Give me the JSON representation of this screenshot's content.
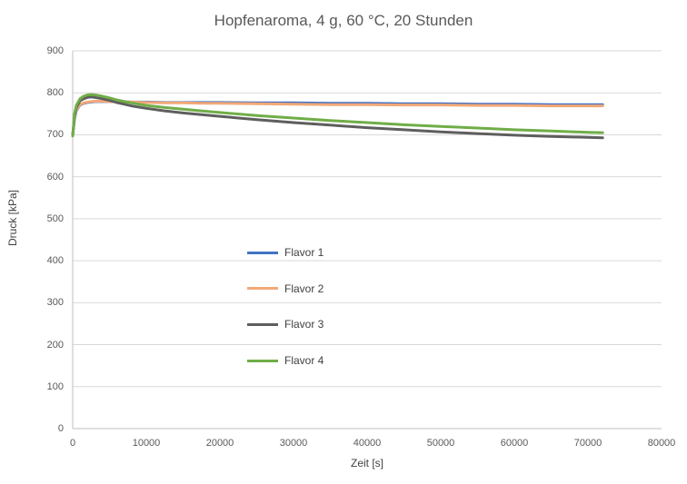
{
  "chart_data": {
    "type": "line",
    "title": "Hopfenaroma, 4 g, 60 °C, 20 Stunden",
    "xlabel": "Zeit [s]",
    "ylabel": "Druck [kPa]",
    "xlim": [
      0,
      80000
    ],
    "ylim": [
      0,
      900
    ],
    "x_ticks": [
      0,
      10000,
      20000,
      30000,
      40000,
      50000,
      60000,
      70000,
      80000
    ],
    "y_ticks": [
      0,
      100,
      200,
      300,
      400,
      500,
      600,
      700,
      800,
      900
    ],
    "grid": "horizontal",
    "legend_position": "inside-center-left",
    "colors": {
      "grid_line": "#D9D9D9",
      "axis_line": "#BFBFBF",
      "title_text": "#595959",
      "tick_text": "#595959",
      "axis_title_text": "#404040"
    },
    "x": [
      0,
      250,
      500,
      1000,
      1500,
      2000,
      2500,
      3000,
      4000,
      5000,
      6000,
      8000,
      10000,
      12500,
      15000,
      17500,
      20000,
      25000,
      30000,
      35000,
      40000,
      45000,
      50000,
      55000,
      60000,
      65000,
      70000,
      72000
    ],
    "series": [
      {
        "name": "Flavor 1",
        "color": "#4472C4",
        "values": [
          700,
          738,
          758,
          771,
          775,
          777,
          778,
          779,
          779,
          779,
          779,
          778,
          778,
          777,
          777,
          777,
          777,
          776,
          776,
          775,
          775,
          774,
          774,
          773,
          773,
          772,
          772,
          772
        ]
      },
      {
        "name": "Flavor 2",
        "color": "#F2A878",
        "values": [
          700,
          740,
          760,
          772,
          776,
          778,
          779,
          780,
          780,
          779,
          779,
          778,
          777,
          776,
          776,
          775,
          775,
          774,
          773,
          772,
          772,
          771,
          771,
          770,
          770,
          769,
          769,
          769
        ]
      },
      {
        "name": "Flavor 3",
        "color": "#5E5E5E",
        "values": [
          698,
          744,
          765,
          781,
          786,
          789,
          790,
          789,
          786,
          782,
          777,
          769,
          763,
          757,
          752,
          748,
          744,
          736,
          729,
          723,
          717,
          712,
          707,
          703,
          699,
          696,
          694,
          693
        ]
      },
      {
        "name": "Flavor 4",
        "color": "#70AD47",
        "values": [
          697,
          750,
          770,
          786,
          792,
          795,
          796,
          795,
          792,
          788,
          783,
          776,
          770,
          765,
          761,
          757,
          753,
          746,
          740,
          734,
          729,
          724,
          720,
          716,
          712,
          709,
          706,
          705
        ]
      }
    ]
  }
}
